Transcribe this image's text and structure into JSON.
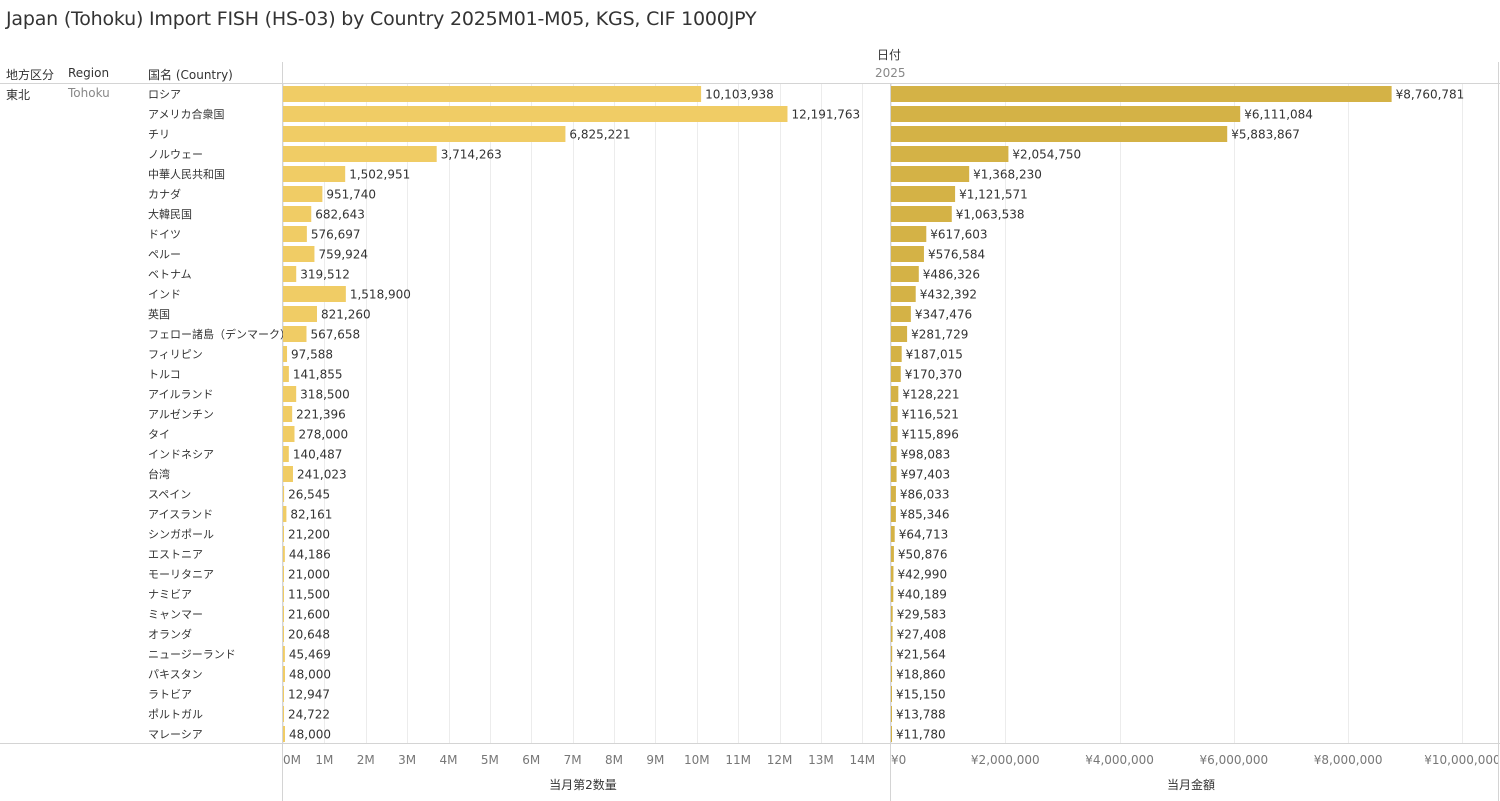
{
  "title": "Japan (Tohoku) Import FISH (HS-03) by Country 2025M01-M05, KGS, CIF 1000JPY",
  "headers": {
    "col_chiho": "地方区分",
    "col_region": "Region",
    "col_country": "国名 (Country)",
    "date_field": "日付",
    "year": "2025"
  },
  "row_group": {
    "chiho": "東北",
    "region": "Tohoku"
  },
  "colors": {
    "qty_bar": "#f0cc65",
    "val_bar": "#d4b246",
    "grid": "#ececec",
    "divider": "#d4d4d4"
  },
  "chart_data": [
    {
      "type": "bar",
      "orientation": "horizontal",
      "xlabel": "当月第2数量",
      "xlim": [
        0,
        14500000
      ],
      "ticks": [
        0,
        1000000,
        2000000,
        3000000,
        4000000,
        5000000,
        6000000,
        7000000,
        8000000,
        9000000,
        10000000,
        11000000,
        12000000,
        13000000,
        14000000
      ],
      "tick_labels": [
        "0M",
        "1M",
        "2M",
        "3M",
        "4M",
        "5M",
        "6M",
        "7M",
        "8M",
        "9M",
        "10M",
        "11M",
        "12M",
        "13M",
        "14M"
      ],
      "grid": true,
      "categories": [
        "ロシア",
        "アメリカ合衆国",
        "チリ",
        "ノルウェー",
        "中華人民共和国",
        "カナダ",
        "大韓民国",
        "ドイツ",
        "ペルー",
        "ベトナム",
        "インド",
        "英国",
        "フェロー諸島（デンマーク）",
        "フィリピン",
        "トルコ",
        "アイルランド",
        "アルゼンチン",
        "タイ",
        "インドネシア",
        "台湾",
        "スペイン",
        "アイスランド",
        "シンガポール",
        "エストニア",
        "モーリタニア",
        "ナミビア",
        "ミャンマー",
        "オランダ",
        "ニュージーランド",
        "パキスタン",
        "ラトビア",
        "ポルトガル",
        "マレーシア"
      ],
      "values": [
        10103938,
        12191763,
        6825221,
        3714263,
        1502951,
        951740,
        682643,
        576697,
        759924,
        319512,
        1518900,
        821260,
        567658,
        97588,
        141855,
        318500,
        221396,
        278000,
        140487,
        241023,
        26545,
        82161,
        21200,
        44186,
        21000,
        11500,
        21600,
        20648,
        45469,
        48000,
        12947,
        24722,
        48000
      ],
      "value_labels": [
        "10,103,938",
        "12,191,763",
        "6,825,221",
        "3,714,263",
        "1,502,951",
        "951,740",
        "682,643",
        "576,697",
        "759,924",
        "319,512",
        "1,518,900",
        "821,260",
        "567,658",
        "97,588",
        "141,855",
        "318,500",
        "221,396",
        "278,000",
        "140,487",
        "241,023",
        "26,545",
        "82,161",
        "21,200",
        "44,186",
        "21,000",
        "11,500",
        "21,600",
        "20,648",
        "45,469",
        "48,000",
        "12,947",
        "24,722",
        "48,000"
      ]
    },
    {
      "type": "bar",
      "orientation": "horizontal",
      "xlabel": "当月金額",
      "xlim": [
        0,
        10500000
      ],
      "ticks": [
        0,
        2000000,
        4000000,
        6000000,
        8000000,
        10000000
      ],
      "tick_labels": [
        "¥0",
        "¥2,000,000",
        "¥4,000,000",
        "¥6,000,000",
        "¥8,000,000",
        "¥10,000,000"
      ],
      "grid": true,
      "categories": [
        "ロシア",
        "アメリカ合衆国",
        "チリ",
        "ノルウェー",
        "中華人民共和国",
        "カナダ",
        "大韓民国",
        "ドイツ",
        "ペルー",
        "ベトナム",
        "インド",
        "英国",
        "フェロー諸島（デンマーク）",
        "フィリピン",
        "トルコ",
        "アイルランド",
        "アルゼンチン",
        "タイ",
        "インドネシア",
        "台湾",
        "スペイン",
        "アイスランド",
        "シンガポール",
        "エストニア",
        "モーリタニア",
        "ナミビア",
        "ミャンマー",
        "オランダ",
        "ニュージーランド",
        "パキスタン",
        "ラトビア",
        "ポルトガル",
        "マレーシア"
      ],
      "values": [
        8760781,
        6111084,
        5883867,
        2054750,
        1368230,
        1121571,
        1063538,
        617603,
        576584,
        486326,
        432392,
        347476,
        281729,
        187015,
        170370,
        128221,
        116521,
        115896,
        98083,
        97403,
        86033,
        85346,
        64713,
        50876,
        42990,
        40189,
        29583,
        27408,
        21564,
        18860,
        15150,
        13788,
        11780
      ],
      "value_labels": [
        "¥8,760,781",
        "¥6,111,084",
        "¥5,883,867",
        "¥2,054,750",
        "¥1,368,230",
        "¥1,121,571",
        "¥1,063,538",
        "¥617,603",
        "¥576,584",
        "¥486,326",
        "¥432,392",
        "¥347,476",
        "¥281,729",
        "¥187,015",
        "¥170,370",
        "¥128,221",
        "¥116,521",
        "¥115,896",
        "¥98,083",
        "¥97,403",
        "¥86,033",
        "¥85,346",
        "¥64,713",
        "¥50,876",
        "¥42,990",
        "¥40,189",
        "¥29,583",
        "¥27,408",
        "¥21,564",
        "¥18,860",
        "¥15,150",
        "¥13,788",
        "¥11,780"
      ]
    }
  ]
}
